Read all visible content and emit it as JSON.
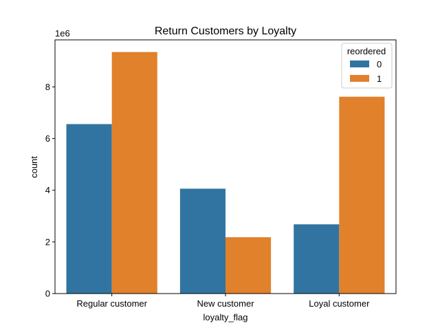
{
  "chart_data": {
    "type": "bar",
    "title": "Return Customers by Loyalty",
    "xlabel": "loyalty_flag",
    "ylabel": "count",
    "y_offset_label": "1e6",
    "y_scale": 1000000,
    "categories": [
      "Regular customer",
      "New customer",
      "Loyal customer"
    ],
    "series": [
      {
        "name": "0",
        "color": "#3274a1",
        "values": [
          6560000,
          4060000,
          2680000
        ]
      },
      {
        "name": "1",
        "color": "#e1812c",
        "values": [
          9350000,
          2180000,
          7620000
        ]
      }
    ],
    "yticks": [
      0,
      2,
      4,
      6,
      8
    ],
    "ylim": [
      0,
      9.82
    ],
    "grid": false,
    "legend": {
      "title": "reordered",
      "placement": "top-right"
    }
  }
}
